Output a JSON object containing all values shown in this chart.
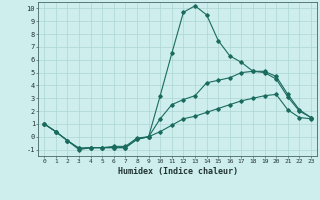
{
  "xlabel": "Humidex (Indice chaleur)",
  "x_values": [
    0,
    1,
    2,
    3,
    4,
    5,
    6,
    7,
    8,
    9,
    10,
    11,
    12,
    13,
    14,
    15,
    16,
    17,
    18,
    19,
    20,
    21,
    22,
    23
  ],
  "line1": [
    1.0,
    0.4,
    -0.3,
    -1.0,
    -0.85,
    -0.85,
    -0.75,
    -0.75,
    -0.1,
    0.0,
    3.2,
    6.5,
    9.7,
    10.2,
    9.5,
    7.5,
    6.3,
    5.8,
    5.1,
    5.0,
    4.5,
    3.1,
    2.0,
    1.5
  ],
  "line2": [
    1.0,
    0.4,
    -0.3,
    -0.9,
    -0.85,
    -0.85,
    -0.85,
    -0.85,
    -0.2,
    0.0,
    1.4,
    2.5,
    2.9,
    3.2,
    4.2,
    4.4,
    4.6,
    5.0,
    5.1,
    5.1,
    4.7,
    3.3,
    2.1,
    1.5
  ],
  "line3": [
    1.0,
    0.4,
    -0.3,
    -0.9,
    -0.85,
    -0.85,
    -0.85,
    -0.85,
    -0.2,
    0.0,
    0.4,
    0.9,
    1.4,
    1.6,
    1.9,
    2.2,
    2.5,
    2.8,
    3.0,
    3.2,
    3.3,
    2.1,
    1.5,
    1.4
  ],
  "line_color": "#1a6b5e",
  "bg_color": "#cdeeed",
  "grid_color": "#aed6d2",
  "ylim": [
    -1.5,
    10.5
  ],
  "xlim": [
    -0.5,
    23.5
  ],
  "yticks": [
    -1,
    0,
    1,
    2,
    3,
    4,
    5,
    6,
    7,
    8,
    9,
    10
  ],
  "xticks": [
    0,
    1,
    2,
    3,
    4,
    5,
    6,
    7,
    8,
    9,
    10,
    11,
    12,
    13,
    14,
    15,
    16,
    17,
    18,
    19,
    20,
    21,
    22,
    23
  ]
}
